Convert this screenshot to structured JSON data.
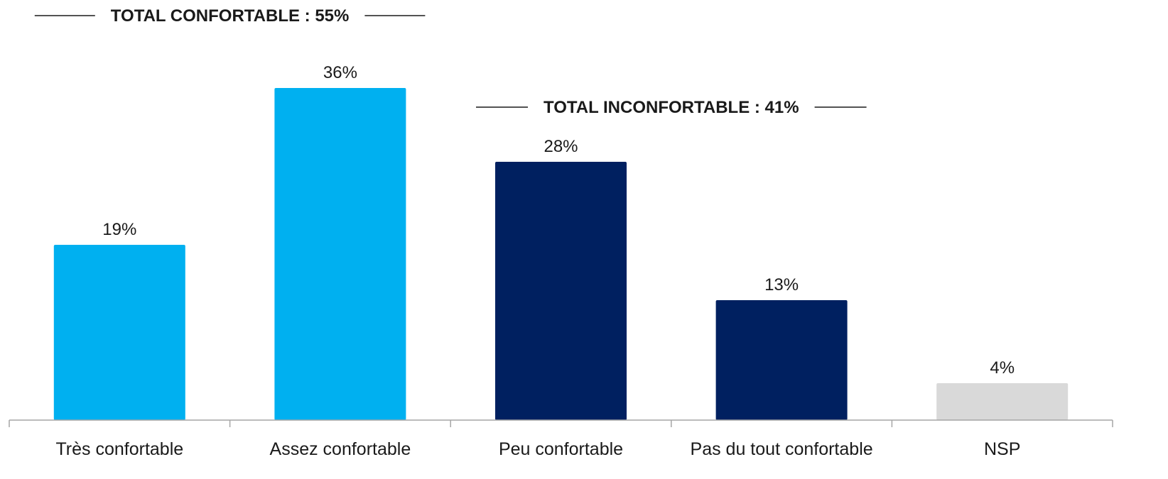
{
  "chart_data": {
    "type": "bar",
    "title": "",
    "xlabel": "",
    "ylabel": "",
    "categories": [
      "Très confortable",
      "Assez confortable",
      "Peu confortable",
      "Pas du tout confortable",
      "NSP"
    ],
    "values": [
      19,
      36,
      28,
      13,
      4
    ],
    "value_labels": [
      "19%",
      "36%",
      "28%",
      "13%",
      "4%"
    ],
    "bar_colors": [
      "#00B0F0",
      "#00B0F0",
      "#002060",
      "#002060",
      "#D9D9D9"
    ],
    "ylim": [
      0,
      40
    ],
    "grid": false,
    "legend": "none",
    "annotations": [
      {
        "text": "TOTAL CONFORTABLE : 55%",
        "categories": [
          "Très confortable",
          "Assez confortable"
        ]
      },
      {
        "text": "TOTAL INCONFORTABLE : 41%",
        "categories": [
          "Peu confortable",
          "Pas du tout confortable"
        ]
      }
    ]
  },
  "colors": {
    "axis": "#A6A6A6",
    "text": "#1a1a1a",
    "bracket_line": "#1a1a1a"
  }
}
